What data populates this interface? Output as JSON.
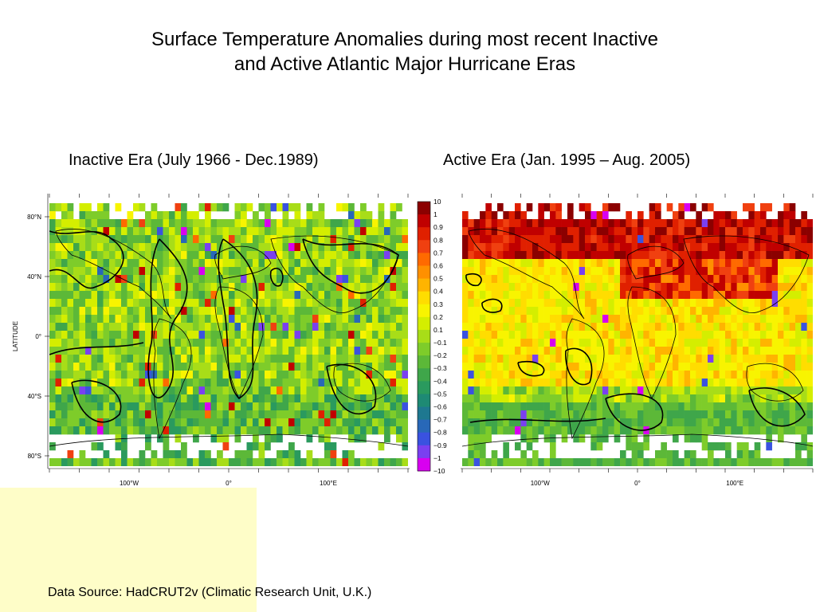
{
  "title": "Surface Temperature Anomalies during most recent Inactive\nand Active Atlantic Major Hurricane Eras",
  "source": "Data Source:  HadCRUT2v (Climatic Research Unit, U.K.)",
  "chart_data": [
    {
      "type": "heatmap",
      "title": "Inactive Era (July 1966 - Dec.1989)",
      "ylabel": "LATITUDE",
      "xticks": [
        "100°W",
        "0°",
        "100°E"
      ],
      "yticks": [
        "80°N",
        "40°N",
        "0°",
        "40°S",
        "80°S"
      ],
      "xlim": [
        -180,
        180
      ],
      "ylim": [
        -90,
        90
      ],
      "pattern": "mostly light green to green anomalies (about -0.3 to +0.2) with scattered small warm and cold cells"
    },
    {
      "type": "heatmap",
      "title": "Active Era (Jan. 1995 – Aug. 2005)",
      "xticks": [
        "100°W",
        "0°",
        "100°E"
      ],
      "xlim": [
        -180,
        180
      ],
      "ylim": [
        -90,
        90
      ],
      "pattern": "strong warm anomalies (red/dark red, above +0.7) over northern mid-high latitudes, yellow/orange (about +0.3 to +0.5) over most oceans, greens in the Southern Ocean"
    }
  ],
  "colorbar": {
    "labels": [
      "10",
      "1",
      "0.9",
      "0.8",
      "0.7",
      "0.6",
      "0.5",
      "0.4",
      "0.3",
      "0.2",
      "0.1",
      "−0.1",
      "−0.2",
      "−0.3",
      "−0.4",
      "−0.5",
      "−0.6",
      "−0.7",
      "−0.8",
      "−0.9",
      "−1",
      "−10"
    ],
    "colors": [
      "#8b0000",
      "#c00000",
      "#e02000",
      "#f04010",
      "#ff6a00",
      "#ff9000",
      "#ffb400",
      "#ffdd00",
      "#f8f400",
      "#d4ee00",
      "#a8dd18",
      "#7ecc2a",
      "#5cb838",
      "#3fa64a",
      "#2a9a5e",
      "#1e8a74",
      "#1e7890",
      "#2868b8",
      "#3a52e0",
      "#7a40f0",
      "#d800f0"
    ]
  }
}
